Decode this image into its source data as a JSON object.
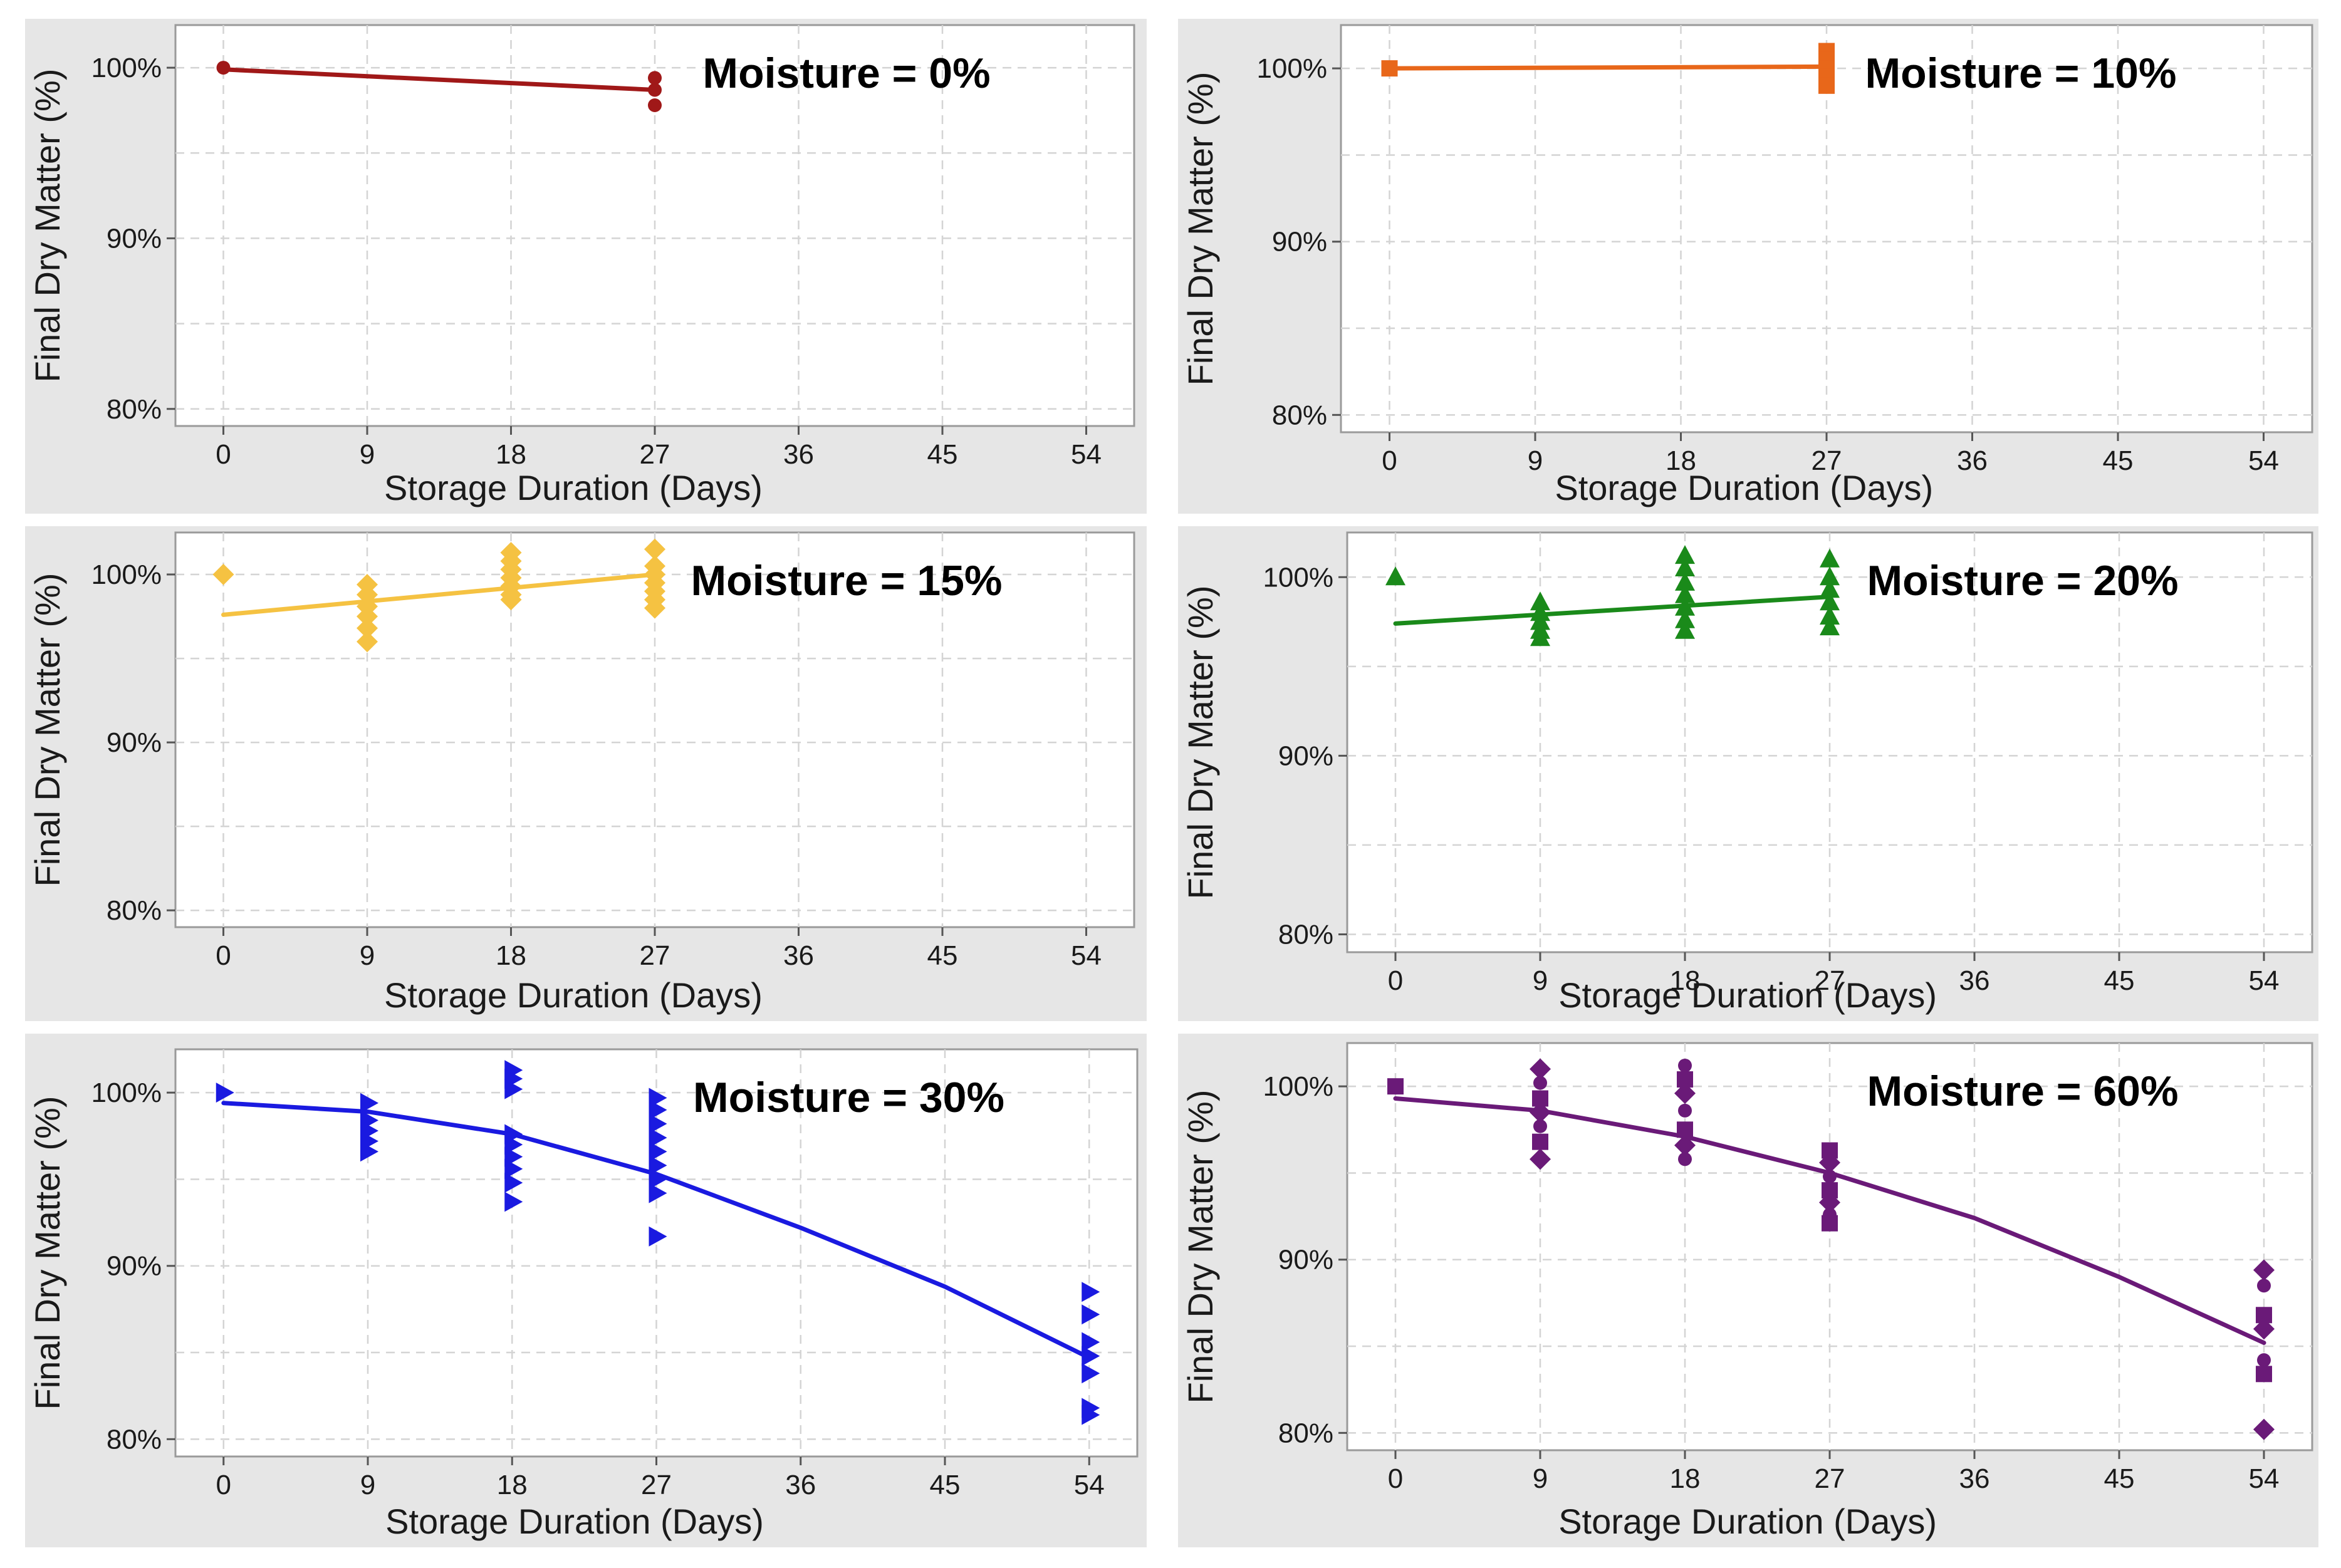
{
  "chart_data": [
    {
      "type": "scatter",
      "title": "Moisture = 0%",
      "xlabel": "Storage Duration (Days)",
      "ylabel": "Final Dry Matter (%)",
      "xticks": [
        "0",
        "9",
        "18",
        "27",
        "36",
        "45",
        "54"
      ],
      "yticks": [
        "80%",
        "90%",
        "100%"
      ],
      "xlim": [
        -3,
        57
      ],
      "ylim": [
        79,
        102.5
      ],
      "grid": true,
      "color": "#a01818",
      "marker": "circle",
      "points": [
        [
          0,
          100
        ],
        [
          27,
          99.4
        ],
        [
          27,
          98.7
        ],
        [
          27,
          97.8
        ]
      ],
      "fit": [
        [
          0,
          99.9
        ],
        [
          27,
          98.7
        ]
      ]
    },
    {
      "type": "scatter",
      "title": "Moisture = 10%",
      "xlabel": "Storage Duration (Days)",
      "ylabel": "Final Dry Matter (%)",
      "xticks": [
        "0",
        "9",
        "18",
        "27",
        "36",
        "45",
        "54"
      ],
      "yticks": [
        "80%",
        "90%",
        "100%"
      ],
      "xlim": [
        -3,
        57
      ],
      "ylim": [
        79,
        102.5
      ],
      "grid": true,
      "color": "#e8671a",
      "marker": "square",
      "points": [
        [
          0,
          100
        ],
        [
          27,
          101
        ],
        [
          27,
          100.5
        ],
        [
          27,
          100
        ],
        [
          27,
          99.5
        ],
        [
          27,
          99
        ]
      ],
      "fit": [
        [
          0,
          100
        ],
        [
          27,
          100.1
        ]
      ]
    },
    {
      "type": "scatter",
      "title": "Moisture = 15%",
      "xlabel": "Storage Duration (Days)",
      "ylabel": "Final Dry Matter (%)",
      "xticks": [
        "0",
        "9",
        "18",
        "27",
        "36",
        "45",
        "54"
      ],
      "yticks": [
        "80%",
        "90%",
        "100%"
      ],
      "xlim": [
        -3,
        57
      ],
      "ylim": [
        79,
        102.5
      ],
      "grid": true,
      "color": "#f5c242",
      "marker": "diamond",
      "points": [
        [
          0,
          100
        ],
        [
          9,
          99.4
        ],
        [
          9,
          98.8
        ],
        [
          9,
          98.1
        ],
        [
          9,
          97.5
        ],
        [
          9,
          96.8
        ],
        [
          9,
          96
        ],
        [
          18,
          101.3
        ],
        [
          18,
          100.8
        ],
        [
          18,
          100.3
        ],
        [
          18,
          99.8
        ],
        [
          18,
          99.3
        ],
        [
          18,
          98.8
        ],
        [
          18,
          98.5
        ],
        [
          27,
          101.5
        ],
        [
          27,
          100.5
        ],
        [
          27,
          100
        ],
        [
          27,
          99.5
        ],
        [
          27,
          99
        ],
        [
          27,
          98.5
        ],
        [
          27,
          98
        ]
      ],
      "fit": [
        [
          0,
          97.6
        ],
        [
          27,
          100
        ]
      ]
    },
    {
      "type": "scatter",
      "title": "Moisture = 20%",
      "xlabel": "Storage Duration (Days)",
      "ylabel": "Final Dry Matter (%)",
      "xticks": [
        "0",
        "9",
        "18",
        "27",
        "36",
        "45",
        "54"
      ],
      "yticks": [
        "80%",
        "90%",
        "100%"
      ],
      "xlim": [
        -3,
        57
      ],
      "ylim": [
        79,
        102.5
      ],
      "grid": true,
      "color": "#1a8a1a",
      "marker": "triangle-up",
      "points": [
        [
          0,
          100
        ],
        [
          9,
          98.6
        ],
        [
          9,
          98
        ],
        [
          9,
          97.5
        ],
        [
          9,
          97
        ],
        [
          9,
          96.6
        ],
        [
          18,
          101.2
        ],
        [
          18,
          100.5
        ],
        [
          18,
          99.7
        ],
        [
          18,
          99
        ],
        [
          18,
          98.3
        ],
        [
          18,
          97.6
        ],
        [
          18,
          97
        ],
        [
          27,
          101
        ],
        [
          27,
          100
        ],
        [
          27,
          99.3
        ],
        [
          27,
          98.6
        ],
        [
          27,
          97.8
        ],
        [
          27,
          97.2
        ]
      ],
      "fit": [
        [
          0,
          97.4
        ],
        [
          27,
          98.9
        ]
      ]
    },
    {
      "type": "scatter",
      "title": "Moisture = 30%",
      "xlabel": "Storage Duration  (Days)",
      "ylabel": "Final Dry Matter (%)",
      "xticks": [
        "0",
        "9",
        "18",
        "27",
        "36",
        "45",
        "54"
      ],
      "yticks": [
        "80%",
        "90%",
        "100%"
      ],
      "xlim": [
        -3,
        57
      ],
      "ylim": [
        79,
        102.5
      ],
      "grid": true,
      "color": "#1a1ae0",
      "marker": "triangle-right",
      "points": [
        [
          0,
          100
        ],
        [
          9,
          99.4
        ],
        [
          9,
          98.4
        ],
        [
          9,
          97.8
        ],
        [
          9,
          97.2
        ],
        [
          9,
          96.6
        ],
        [
          18,
          101.3
        ],
        [
          18,
          100.8
        ],
        [
          18,
          100.2
        ],
        [
          18,
          97.6
        ],
        [
          18,
          97
        ],
        [
          18,
          96.3
        ],
        [
          18,
          95.6
        ],
        [
          18,
          94.8
        ],
        [
          18,
          93.7
        ],
        [
          27,
          99.7
        ],
        [
          27,
          99
        ],
        [
          27,
          98.2
        ],
        [
          27,
          97.4
        ],
        [
          27,
          96.6
        ],
        [
          27,
          95.8
        ],
        [
          27,
          95
        ],
        [
          27,
          94.2
        ],
        [
          27,
          91.7
        ],
        [
          54,
          88.5
        ],
        [
          54,
          87.2
        ],
        [
          54,
          85.6
        ],
        [
          54,
          84.8
        ],
        [
          54,
          83.8
        ],
        [
          54,
          81.8
        ],
        [
          54,
          81.4
        ]
      ],
      "fit": [
        [
          0,
          99.4
        ],
        [
          9,
          98.9
        ],
        [
          18,
          97.6
        ],
        [
          27,
          95.3
        ],
        [
          36,
          92.2
        ],
        [
          45,
          88.8
        ],
        [
          54,
          84.7
        ]
      ]
    },
    {
      "type": "scatter",
      "title": "Moisture = 60%",
      "xlabel": "Storage Duration (Days)",
      "ylabel": "Final Dry Matter (%)",
      "xticks": [
        "0",
        "9",
        "18",
        "27",
        "36",
        "45",
        "54"
      ],
      "yticks": [
        "80%",
        "90%",
        "100%"
      ],
      "xlim": [
        -3,
        57
      ],
      "ylim": [
        79,
        102.5
      ],
      "grid": true,
      "color": "#6a1a78",
      "marker": "mixed",
      "points": [
        [
          0,
          100
        ],
        [
          9,
          101
        ],
        [
          9,
          100.2
        ],
        [
          9,
          99.3
        ],
        [
          9,
          98.5
        ],
        [
          9,
          97.7
        ],
        [
          9,
          96.8
        ],
        [
          9,
          95.8
        ],
        [
          18,
          101.2
        ],
        [
          18,
          100.4
        ],
        [
          18,
          99.6
        ],
        [
          18,
          98.6
        ],
        [
          18,
          97.5
        ],
        [
          18,
          96.6
        ],
        [
          18,
          95.8
        ],
        [
          27,
          96.3
        ],
        [
          27,
          95.6
        ],
        [
          27,
          94.8
        ],
        [
          27,
          94
        ],
        [
          27,
          93.3
        ],
        [
          27,
          92.6
        ],
        [
          27,
          92.1
        ],
        [
          54,
          89.4
        ],
        [
          54,
          88.5
        ],
        [
          54,
          86.8
        ],
        [
          54,
          86
        ],
        [
          54,
          84.2
        ],
        [
          54,
          83.4
        ],
        [
          54,
          80.2
        ]
      ],
      "fit": [
        [
          0,
          99.3
        ],
        [
          9,
          98.6
        ],
        [
          18,
          97.1
        ],
        [
          27,
          95
        ],
        [
          36,
          92.4
        ],
        [
          45,
          89
        ],
        [
          54,
          85.2
        ]
      ]
    }
  ]
}
